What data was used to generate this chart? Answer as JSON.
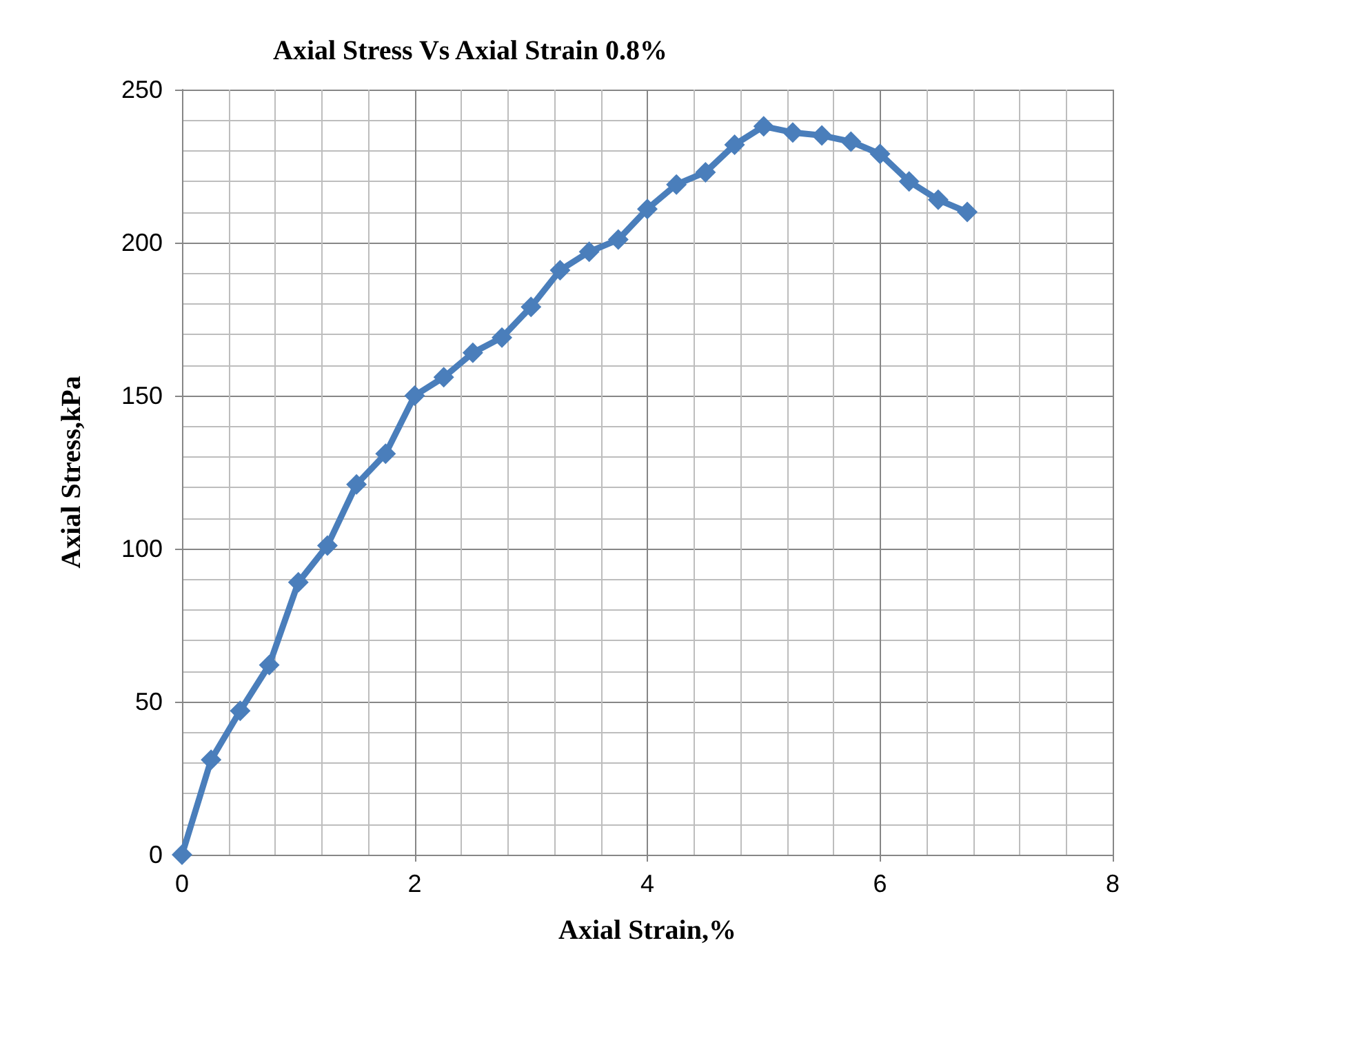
{
  "chart_data": {
    "type": "line",
    "title": "Axial Stress Vs Axial Strain 0.8%",
    "xlabel": "Axial Strain,%",
    "ylabel": "Axial Stress,kPa",
    "x": [
      0,
      0.25,
      0.5,
      0.75,
      1,
      1.25,
      1.5,
      1.75,
      2,
      2.25,
      2.5,
      2.75,
      3,
      3.25,
      3.5,
      3.75,
      4,
      4.25,
      4.5,
      4.75,
      5,
      5.25,
      5.5,
      5.75,
      6,
      6.25,
      6.5,
      6.75
    ],
    "series": [
      {
        "color": "#4a7ebb",
        "values": [
          0,
          31,
          47,
          62,
          89,
          101,
          121,
          131,
          150,
          156,
          164,
          169,
          179,
          191,
          197,
          201,
          211,
          219,
          223,
          232,
          238,
          236,
          235,
          233,
          229,
          220,
          214,
          210
        ]
      }
    ],
    "xlim": [
      0,
      8
    ],
    "xticks": [
      0,
      2,
      4,
      6,
      8
    ],
    "ylim": [
      0,
      250
    ],
    "yticks": [
      0,
      50,
      100,
      150,
      200,
      250
    ],
    "grid": true,
    "marker": "diamond",
    "line_style": "solid"
  }
}
